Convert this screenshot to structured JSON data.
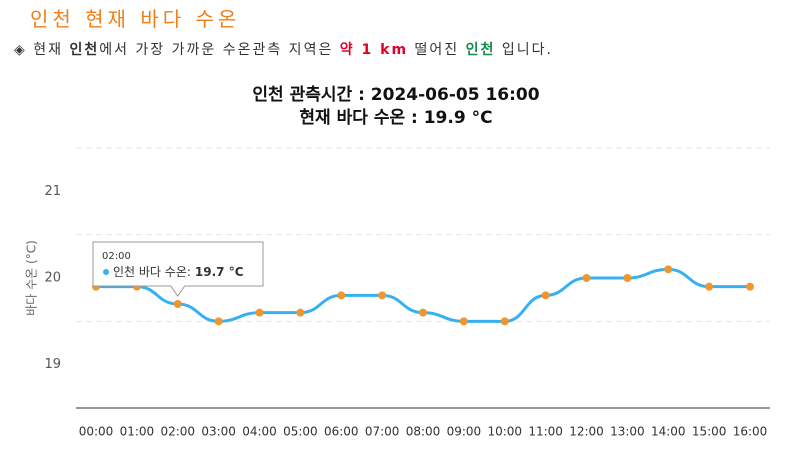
{
  "page_title": "인천 현재 바다 수온",
  "info": [
    "◈ 현재 ",
    "인천",
    "에서 가장 가까운 수온관측 지역은 ",
    "약 1 km",
    " 떨어진 ",
    "인천",
    " 입니다."
  ],
  "chart_data": {
    "type": "line",
    "title": "인천 관측시간 : 2024-06-05 16:00",
    "subtitle": "현재 바다 수온 : 19.9 °C",
    "y_label": "바다 수온 (°C)",
    "categories": [
      "00:00",
      "01:00",
      "02:00",
      "03:00",
      "04:00",
      "05:00",
      "06:00",
      "07:00",
      "08:00",
      "09:00",
      "10:00",
      "11:00",
      "12:00",
      "13:00",
      "14:00",
      "15:00",
      "16:00"
    ],
    "series": [
      {
        "name": "인천 바다 수온",
        "color": "#35b1f2",
        "marker_color": "#f0962e",
        "values": [
          19.9,
          19.9,
          19.7,
          19.5,
          19.6,
          19.6,
          19.8,
          19.8,
          19.6,
          19.5,
          19.5,
          19.8,
          20.0,
          20.0,
          20.1,
          19.9,
          19.9
        ]
      }
    ],
    "ylim": [
      18.5,
      21.5
    ],
    "yticks": [
      19,
      20,
      21
    ],
    "grid_lines": [
      19.5,
      20.5,
      21.5
    ],
    "tooltip": {
      "category": "02:00",
      "label": "인천 바다 수온:",
      "value": "19.7 °C"
    }
  }
}
